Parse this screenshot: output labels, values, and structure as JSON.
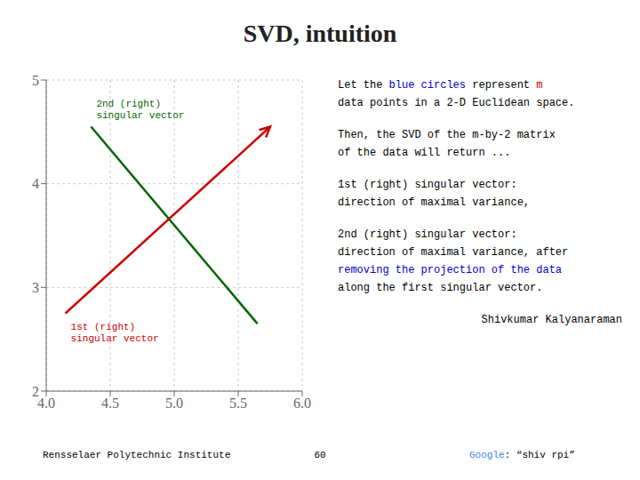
{
  "chart_data": {
    "type": "line",
    "title": "SVD, intuition",
    "xlim": [
      4.0,
      6.0
    ],
    "ylim": [
      2.0,
      5.0
    ],
    "xticks": [
      {
        "value": 4.0,
        "label": "4.0"
      },
      4.5,
      {
        "value": 5.0,
        "label": "5.0"
      },
      5.5,
      {
        "value": 6.0,
        "label": "6.0"
      }
    ],
    "yticks": [
      2,
      3,
      4,
      5
    ],
    "grid": true,
    "series": [
      {
        "name": "1st (right)\nsingular vector",
        "color": "#cc0000",
        "x": [
          4.15,
          5.75
        ],
        "values": [
          2.75,
          4.55
        ],
        "marker": "arrow"
      },
      {
        "name": "2nd (right)\nsingular vector",
        "color": "#006600",
        "x": [
          4.35,
          5.65
        ],
        "values": [
          4.55,
          2.65
        ],
        "marker": "none"
      }
    ],
    "annotations": {
      "panel": [
        [
          [
            {
              "text": "Let the "
            },
            {
              "text": "blue circles",
              "color": "#0000cc"
            },
            {
              "text": " represent "
            },
            {
              "text": "m",
              "color": "#cc0000"
            }
          ],
          [
            {
              "text": "data points in a 2-D Euclidean space."
            }
          ]
        ],
        [
          [
            {
              "text": "Then, the SVD of the m-by-2 matrix"
            }
          ],
          [
            {
              "text": "of the data will return ..."
            }
          ]
        ],
        [
          [
            {
              "text": "1st (right) singular vector:"
            }
          ],
          [
            {
              "text": "direction of maximal variance,"
            }
          ]
        ],
        [
          [
            {
              "text": "2nd (right) singular vector:"
            }
          ],
          [
            {
              "text": "direction of maximal variance, after"
            }
          ],
          [
            {
              "text": "removing the projection of the data",
              "color": "#0000cc"
            }
          ],
          [
            {
              "text": "along the first singular vector."
            }
          ]
        ],
        [
          [
            {
              "text": "Shivkumar Kalyanaraman"
            }
          ]
        ]
      ],
      "footer": [
        [
          {
            "text": "Rensselaer Polytechnic Institute"
          }
        ],
        [
          {
            "text": "60"
          }
        ],
        [
          {
            "text": "Google",
            "color": "#4285F4"
          },
          {
            "text": ": “shiv rpi”"
          }
        ]
      ]
    }
  }
}
